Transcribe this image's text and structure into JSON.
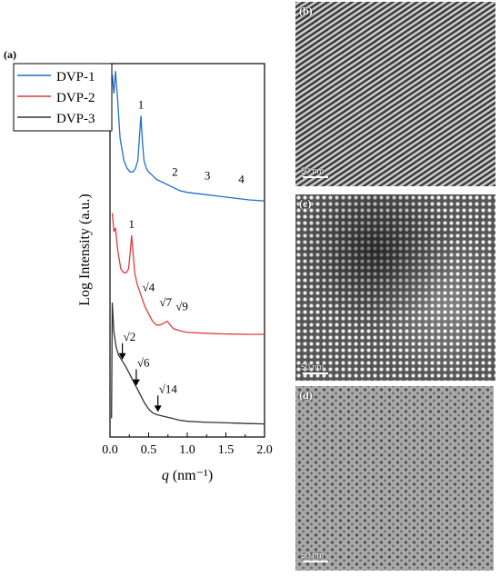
{
  "panel_a_label": "(a)",
  "panel_b_label": "(b)",
  "panel_c_label": "(c)",
  "panel_d_label": "(d)",
  "scale_bar_label": "50 nm",
  "chart_data": {
    "type": "line",
    "xlabel_var": "q",
    "xlabel_unit": "(nm⁻¹)",
    "ylabel": "Log Intensity (a.u.)",
    "xlim": [
      0.0,
      2.0
    ],
    "x_ticks": [
      "0.0",
      "0.5",
      "1.0",
      "1.5",
      "2.0"
    ],
    "legend_position": "top-left",
    "series": [
      {
        "name": "DVP-1",
        "color": "#1f6fd1",
        "x": [
          0.03,
          0.05,
          0.07,
          0.1,
          0.13,
          0.18,
          0.22,
          0.26,
          0.3,
          0.33,
          0.36,
          0.38,
          0.4,
          0.42,
          0.44,
          0.47,
          0.5,
          0.55,
          0.6,
          0.7,
          0.8,
          0.9,
          1.0,
          1.2,
          1.4,
          1.6,
          1.8,
          2.0
        ],
        "y": [
          0.97,
          0.92,
          0.98,
          0.9,
          0.8,
          0.74,
          0.72,
          0.71,
          0.71,
          0.72,
          0.74,
          0.8,
          0.86,
          0.79,
          0.74,
          0.72,
          0.71,
          0.7,
          0.69,
          0.68,
          0.67,
          0.66,
          0.655,
          0.65,
          0.645,
          0.64,
          0.635,
          0.632
        ]
      },
      {
        "name": "DVP-2",
        "color": "#e03c3c",
        "x": [
          0.03,
          0.05,
          0.07,
          0.1,
          0.14,
          0.18,
          0.21,
          0.24,
          0.26,
          0.28,
          0.3,
          0.32,
          0.35,
          0.4,
          0.45,
          0.5,
          0.55,
          0.6,
          0.65,
          0.7,
          0.74,
          0.78,
          0.82,
          0.9,
          1.0,
          1.2,
          1.5,
          1.8,
          2.0
        ],
        "y": [
          0.6,
          0.55,
          0.56,
          0.5,
          0.45,
          0.44,
          0.44,
          0.45,
          0.49,
          0.54,
          0.49,
          0.44,
          0.41,
          0.38,
          0.35,
          0.33,
          0.31,
          0.3,
          0.3,
          0.305,
          0.31,
          0.3,
          0.29,
          0.285,
          0.28,
          0.278,
          0.276,
          0.275,
          0.275
        ]
      },
      {
        "name": "DVP-3",
        "color": "#333333",
        "x": [
          0.02,
          0.03,
          0.05,
          0.08,
          0.11,
          0.14,
          0.17,
          0.2,
          0.25,
          0.3,
          0.35,
          0.4,
          0.45,
          0.5,
          0.55,
          0.6,
          0.7,
          0.8,
          0.9,
          1.0,
          1.2,
          1.5,
          1.8,
          2.0
        ],
        "y": [
          0.05,
          0.36,
          0.28,
          0.24,
          0.22,
          0.21,
          0.2,
          0.19,
          0.17,
          0.15,
          0.13,
          0.11,
          0.09,
          0.075,
          0.065,
          0.06,
          0.055,
          0.05,
          0.045,
          0.042,
          0.04,
          0.038,
          0.036,
          0.035
        ]
      }
    ],
    "annotations": [
      {
        "text": "1",
        "x": 0.4,
        "y": 0.88
      },
      {
        "text": "2",
        "x": 0.84,
        "y": 0.7
      },
      {
        "text": "3",
        "x": 1.26,
        "y": 0.69
      },
      {
        "text": "4",
        "x": 1.7,
        "y": 0.68
      },
      {
        "text": "1",
        "x": 0.28,
        "y": 0.56
      },
      {
        "text": "√4",
        "x": 0.5,
        "y": 0.39
      },
      {
        "text": "√7",
        "x": 0.72,
        "y": 0.35
      },
      {
        "text": "√9",
        "x": 0.93,
        "y": 0.34
      }
    ],
    "arrows": [
      {
        "text": "√2",
        "x": 0.16,
        "y": 0.2
      },
      {
        "text": "√6",
        "x": 0.34,
        "y": 0.13
      },
      {
        "text": "√14",
        "x": 0.62,
        "y": 0.06
      }
    ]
  }
}
